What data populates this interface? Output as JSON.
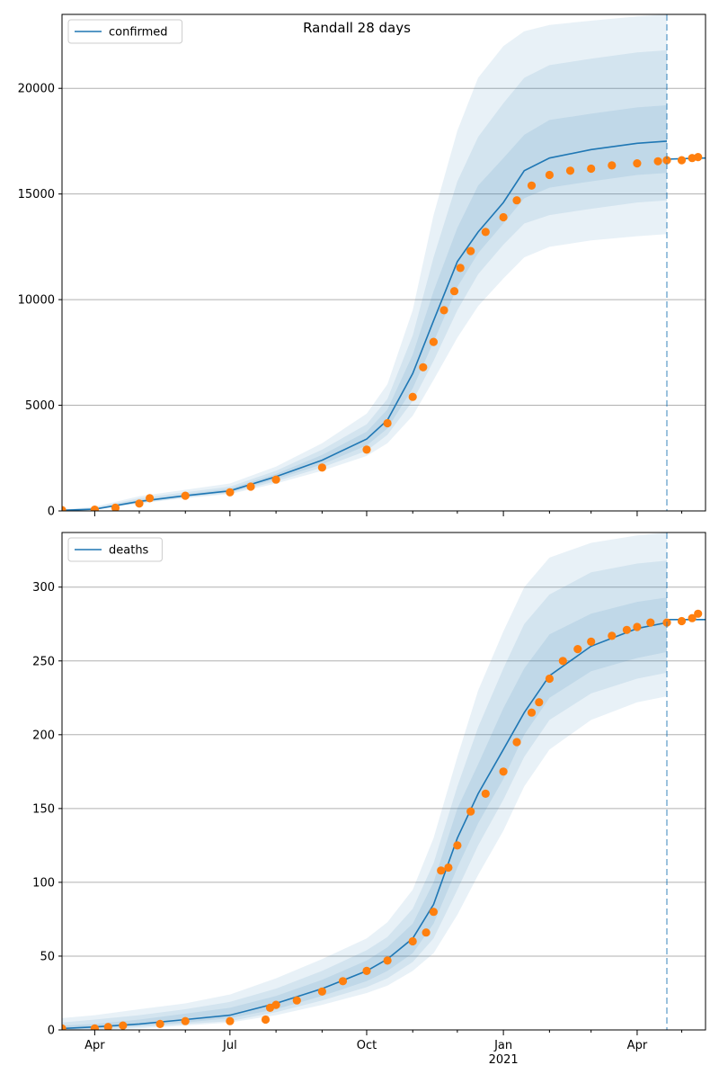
{
  "figure_title": "Randall 28 days",
  "colors": {
    "model_line": "#1f77b4",
    "band": "#1f77b4",
    "observed": "#ff7f0e",
    "grid": "#b0b0b0",
    "axis": "#000000"
  },
  "chart_data": [
    {
      "type": "line",
      "legend": [
        "confirmed"
      ],
      "legend_position": "top-left",
      "grid": "y",
      "ylim": [
        0,
        23500
      ],
      "yticks": [
        0,
        5000,
        10000,
        15000,
        20000
      ],
      "xlim": [
        "2020-03-10",
        "2021-05-17"
      ],
      "xtick_labels": [],
      "forecast_start": "2021-04-21",
      "model": {
        "name": "confirmed",
        "points": [
          [
            "2020-03-10",
            30
          ],
          [
            "2020-04-01",
            80
          ],
          [
            "2020-05-01",
            450
          ],
          [
            "2020-06-01",
            720
          ],
          [
            "2020-07-01",
            950
          ],
          [
            "2020-08-01",
            1620
          ],
          [
            "2020-09-01",
            2400
          ],
          [
            "2020-10-01",
            3400
          ],
          [
            "2020-10-15",
            4300
          ],
          [
            "2020-11-01",
            6500
          ],
          [
            "2020-11-15",
            9000
          ],
          [
            "2020-12-01",
            11800
          ],
          [
            "2020-12-15",
            13200
          ],
          [
            "2021-01-01",
            14600
          ],
          [
            "2021-01-15",
            16100
          ],
          [
            "2021-02-01",
            16700
          ],
          [
            "2021-03-01",
            17100
          ],
          [
            "2021-04-01",
            17400
          ],
          [
            "2021-04-21",
            17500
          ]
        ],
        "bands": [
          {
            "lower": [
              30,
              50,
              350,
              600,
              800,
              1300,
              1900,
              2600,
              3200,
              4500,
              6200,
              8200,
              9700,
              11000,
              12000,
              12500,
              12800,
              13000,
              13100
            ],
            "upper": [
              60,
              200,
              700,
              1000,
              1300,
              2100,
              3200,
              4600,
              6000,
              9500,
              14000,
              18000,
              20500,
              22000,
              22700,
              23000,
              23200,
              23400,
              23500
            ]
          },
          {
            "lower": [
              30,
              60,
              380,
              640,
              850,
              1400,
              2050,
              2850,
              3600,
              5200,
              7100,
              9500,
              11200,
              12600,
              13600,
              14000,
              14300,
              14600,
              14700
            ],
            "upper": [
              45,
              150,
              600,
              880,
              1150,
              1900,
              2900,
              4100,
              5300,
              8300,
              12000,
              15600,
              17700,
              19300,
              20500,
              21100,
              21400,
              21700,
              21800
            ]
          },
          {
            "lower": [
              30,
              70,
              410,
              680,
              900,
              1500,
              2200,
              3100,
              3900,
              5800,
              8000,
              10600,
              12200,
              13600,
              14800,
              15300,
              15600,
              15900,
              16000
            ],
            "upper": [
              40,
              110,
              520,
              780,
              1050,
              1750,
              2650,
              3750,
              4800,
              7400,
              10400,
              13400,
              15400,
              16700,
              17800,
              18500,
              18800,
              19100,
              19200
            ]
          }
        ],
        "projection": [
          [
            "2021-04-21",
            16650
          ],
          [
            "2021-05-17",
            16700
          ]
        ]
      },
      "observed": [
        [
          "2020-03-10",
          40
        ],
        [
          "2020-04-01",
          60
        ],
        [
          "2020-04-15",
          150
        ],
        [
          "2020-05-01",
          350
        ],
        [
          "2020-05-08",
          600
        ],
        [
          "2020-06-01",
          720
        ],
        [
          "2020-07-01",
          880
        ],
        [
          "2020-07-15",
          1150
        ],
        [
          "2020-08-01",
          1480
        ],
        [
          "2020-09-01",
          2050
        ],
        [
          "2020-10-01",
          2900
        ],
        [
          "2020-10-15",
          4150
        ],
        [
          "2020-11-01",
          5400
        ],
        [
          "2020-11-08",
          6800
        ],
        [
          "2020-11-15",
          8000
        ],
        [
          "2020-11-22",
          9500
        ],
        [
          "2020-11-29",
          10400
        ],
        [
          "2020-12-03",
          11500
        ],
        [
          "2020-12-10",
          12300
        ],
        [
          "2020-12-20",
          13200
        ],
        [
          "2021-01-01",
          13900
        ],
        [
          "2021-01-10",
          14700
        ],
        [
          "2021-01-20",
          15400
        ],
        [
          "2021-02-01",
          15900
        ],
        [
          "2021-02-15",
          16100
        ],
        [
          "2021-03-01",
          16200
        ],
        [
          "2021-03-15",
          16350
        ],
        [
          "2021-04-01",
          16450
        ],
        [
          "2021-04-15",
          16550
        ],
        [
          "2021-04-21",
          16600
        ],
        [
          "2021-05-01",
          16600
        ],
        [
          "2021-05-08",
          16700
        ],
        [
          "2021-05-12",
          16750
        ]
      ]
    },
    {
      "type": "line",
      "legend": [
        "deaths"
      ],
      "legend_position": "top-left",
      "grid": "y",
      "ylim": [
        0,
        337
      ],
      "yticks": [
        0,
        50,
        100,
        150,
        200,
        250,
        300
      ],
      "xlim": [
        "2020-03-10",
        "2021-05-17"
      ],
      "xtick_labels": [
        {
          "date": "2020-04-01",
          "label": "Apr"
        },
        {
          "date": "2020-07-01",
          "label": "Jul"
        },
        {
          "date": "2020-10-01",
          "label": "Oct"
        },
        {
          "date": "2021-01-01",
          "label": "Jan",
          "sub": "2021"
        },
        {
          "date": "2021-04-01",
          "label": "Apr"
        }
      ],
      "forecast_start": "2021-04-21",
      "model": {
        "name": "deaths",
        "points": [
          [
            "2020-03-10",
            1
          ],
          [
            "2020-04-01",
            2
          ],
          [
            "2020-05-01",
            4
          ],
          [
            "2020-06-01",
            7
          ],
          [
            "2020-07-01",
            10
          ],
          [
            "2020-08-01",
            18
          ],
          [
            "2020-09-01",
            28
          ],
          [
            "2020-10-01",
            40
          ],
          [
            "2020-10-15",
            48
          ],
          [
            "2020-11-01",
            62
          ],
          [
            "2020-11-15",
            85
          ],
          [
            "2020-12-01",
            130
          ],
          [
            "2020-12-15",
            160
          ],
          [
            "2021-01-01",
            190
          ],
          [
            "2021-01-15",
            215
          ],
          [
            "2021-02-01",
            240
          ],
          [
            "2021-03-01",
            260
          ],
          [
            "2021-04-01",
            272
          ],
          [
            "2021-04-21",
            276
          ]
        ],
        "bands": [
          {
            "lower": [
              0,
              0,
              1,
              3,
              5,
              10,
              17,
              25,
              30,
              40,
              52,
              78,
              105,
              135,
              165,
              190,
              210,
              222,
              226
            ],
            "upper": [
              8,
              10,
              14,
              18,
              24,
              35,
              48,
              62,
              73,
              95,
              130,
              185,
              230,
              270,
              300,
              320,
              330,
              335,
              337
            ]
          },
          {
            "lower": [
              0,
              0,
              2,
              4,
              6,
              12,
              20,
              29,
              35,
              46,
              62,
              95,
              125,
              156,
              185,
              210,
              228,
              238,
              242
            ],
            "upper": [
              5,
              7,
              10,
              14,
              19,
              28,
              40,
              54,
              63,
              82,
              113,
              165,
              205,
              245,
              275,
              295,
              310,
              316,
              318
            ]
          },
          {
            "lower": [
              0,
              1,
              3,
              5,
              8,
              14,
              23,
              33,
              40,
              52,
              72,
              110,
              140,
              170,
              200,
              225,
              243,
              252,
              256
            ],
            "upper": [
              3,
              4,
              7,
              11,
              15,
              23,
              34,
              47,
              56,
              72,
              100,
              150,
              180,
              218,
              245,
              268,
              282,
              290,
              293
            ]
          }
        ],
        "projection": [
          [
            "2021-04-21",
            278
          ],
          [
            "2021-05-17",
            278
          ]
        ]
      },
      "observed": [
        [
          "2020-03-10",
          1
        ],
        [
          "2020-04-01",
          1
        ],
        [
          "2020-04-10",
          2
        ],
        [
          "2020-04-20",
          3
        ],
        [
          "2020-05-15",
          4
        ],
        [
          "2020-06-01",
          6
        ],
        [
          "2020-07-01",
          6
        ],
        [
          "2020-07-25",
          7
        ],
        [
          "2020-07-28",
          15
        ],
        [
          "2020-08-01",
          17
        ],
        [
          "2020-08-15",
          20
        ],
        [
          "2020-09-01",
          26
        ],
        [
          "2020-09-15",
          33
        ],
        [
          "2020-10-01",
          40
        ],
        [
          "2020-10-15",
          47
        ],
        [
          "2020-11-01",
          60
        ],
        [
          "2020-11-10",
          66
        ],
        [
          "2020-11-15",
          80
        ],
        [
          "2020-11-20",
          108
        ],
        [
          "2020-11-25",
          110
        ],
        [
          "2020-12-01",
          125
        ],
        [
          "2020-12-10",
          148
        ],
        [
          "2020-12-20",
          160
        ],
        [
          "2021-01-01",
          175
        ],
        [
          "2021-01-10",
          195
        ],
        [
          "2021-01-20",
          215
        ],
        [
          "2021-01-25",
          222
        ],
        [
          "2021-02-01",
          238
        ],
        [
          "2021-02-10",
          250
        ],
        [
          "2021-02-20",
          258
        ],
        [
          "2021-03-01",
          263
        ],
        [
          "2021-03-15",
          267
        ],
        [
          "2021-03-25",
          271
        ],
        [
          "2021-04-01",
          273
        ],
        [
          "2021-04-10",
          276
        ],
        [
          "2021-04-21",
          276
        ],
        [
          "2021-05-01",
          277
        ],
        [
          "2021-05-08",
          279
        ],
        [
          "2021-05-12",
          282
        ]
      ]
    }
  ]
}
